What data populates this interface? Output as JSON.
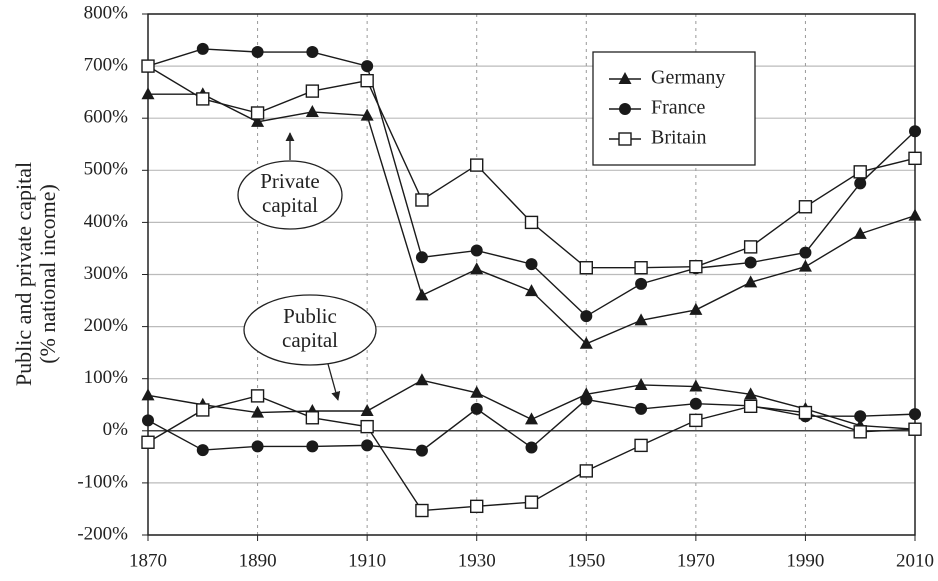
{
  "chart_data": {
    "type": "line",
    "y_label": [
      "Public and private capital",
      "(% national income)"
    ],
    "x": [
      1870,
      1880,
      1890,
      1900,
      1910,
      1920,
      1930,
      1940,
      1950,
      1960,
      1970,
      1980,
      1990,
      2000,
      2010
    ],
    "xlim": [
      1870,
      2010
    ],
    "xticks": [
      1870,
      1890,
      1910,
      1930,
      1950,
      1970,
      1990,
      2010
    ],
    "ylim": [
      -200,
      800
    ],
    "yticks": [
      {
        "value": -200,
        "label": "-200%"
      },
      {
        "value": -100,
        "label": "-100%"
      },
      {
        "value": 0,
        "label": "0%"
      },
      {
        "value": 100,
        "label": "100%"
      },
      {
        "value": 200,
        "label": "200%"
      },
      {
        "value": 300,
        "label": "300%"
      },
      {
        "value": 400,
        "label": "400%"
      },
      {
        "value": 500,
        "label": "500%"
      },
      {
        "value": 600,
        "label": "600%"
      },
      {
        "value": 700,
        "label": "700%"
      },
      {
        "value": 800,
        "label": "800%"
      }
    ],
    "grid": true,
    "legend": "upper right",
    "series": [
      {
        "name": "Germany",
        "color": "#1a1a1a",
        "marker": "triangle",
        "private": [
          646,
          646,
          593,
          612,
          605,
          260,
          310,
          268,
          167,
          212,
          232,
          285,
          315,
          378,
          413
        ],
        "public": [
          68,
          50,
          35,
          38,
          38,
          97,
          73,
          22,
          70,
          88,
          85,
          70,
          42,
          10,
          3
        ]
      },
      {
        "name": "France",
        "color": "#1a1a1a",
        "marker": "circle",
        "private": [
          700,
          733,
          727,
          727,
          700,
          333,
          346,
          320,
          220,
          282,
          312,
          323,
          342,
          475,
          575
        ],
        "public": [
          20,
          -37,
          -30,
          -30,
          -28,
          -38,
          42,
          -32,
          60,
          42,
          52,
          48,
          28,
          28,
          32
        ]
      },
      {
        "name": "Britain",
        "color": "#1a1a1a",
        "marker": "square",
        "private": [
          700,
          637,
          610,
          652,
          672,
          443,
          510,
          400,
          313,
          313,
          315,
          353,
          430,
          497,
          523
        ],
        "public": [
          -22,
          40,
          67,
          25,
          8,
          -153,
          -145,
          -137,
          -77,
          -28,
          20,
          47,
          35,
          -2,
          3
        ]
      }
    ],
    "annotations": [
      {
        "lines": [
          "Private",
          "capital"
        ]
      },
      {
        "lines": [
          "Public",
          "capital"
        ]
      }
    ]
  }
}
